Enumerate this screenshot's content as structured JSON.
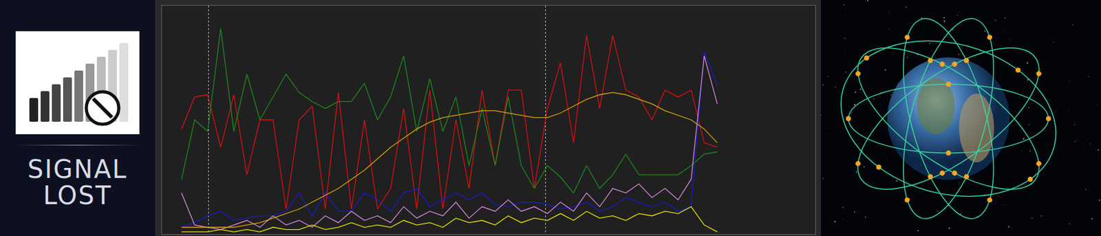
{
  "panel_text": [
    "SIGNAL",
    "LOST"
  ],
  "chart_data": {
    "type": "line",
    "x": [
      3,
      5,
      7,
      9,
      11,
      13,
      15,
      17,
      19,
      21,
      23,
      25,
      27,
      29,
      31,
      33,
      35,
      37,
      39,
      41,
      43,
      45,
      47,
      49,
      51,
      53,
      55,
      57,
      59,
      61,
      63,
      65,
      67,
      69,
      71,
      73,
      75,
      77,
      79,
      81,
      83,
      85
    ],
    "series": [
      {
        "color": "#e01010",
        "values": [
          46,
          60,
          61,
          38,
          61,
          26,
          50,
          50,
          11,
          50,
          56,
          11,
          62,
          11,
          50,
          11,
          20,
          55,
          11,
          63,
          11,
          50,
          20,
          63,
          30,
          63,
          63,
          20,
          55,
          75,
          40,
          87,
          55,
          87,
          63,
          60,
          50,
          63,
          60,
          63,
          40,
          38
        ]
      },
      {
        "color": "#1c8c1c",
        "values": [
          24,
          50,
          45,
          90,
          45,
          70,
          50,
          60,
          70,
          62,
          58,
          55,
          58,
          58,
          66,
          50,
          60,
          78,
          45,
          68,
          45,
          60,
          30,
          55,
          30,
          60,
          30,
          20,
          30,
          25,
          18,
          30,
          20,
          26,
          35,
          26,
          26,
          26,
          26,
          30,
          35,
          36
        ]
      },
      {
        "color": "#1a1ad8",
        "values": [
          3,
          5,
          8,
          10,
          6,
          7,
          8,
          8,
          10,
          18,
          8,
          18,
          10,
          10,
          18,
          15,
          10,
          18,
          20,
          12,
          15,
          18,
          15,
          18,
          13,
          12,
          14,
          14,
          13,
          11,
          12,
          14,
          10,
          12,
          16,
          14,
          12,
          14,
          10,
          12,
          80,
          65
        ]
      },
      {
        "color": "#d88ae0",
        "values": [
          18,
          4,
          3,
          2,
          4,
          6,
          3,
          8,
          4,
          6,
          3,
          8,
          5,
          10,
          6,
          8,
          5,
          12,
          7,
          10,
          8,
          14,
          7,
          12,
          10,
          15,
          10,
          12,
          9,
          14,
          10,
          18,
          12,
          20,
          18,
          22,
          16,
          20,
          15,
          24,
          78,
          57
        ]
      },
      {
        "color": "#e0a800",
        "values": [
          3,
          3,
          3,
          3,
          3,
          4,
          5,
          7,
          9,
          11,
          14,
          17,
          20,
          24,
          28,
          33,
          38,
          42,
          46,
          49,
          51,
          52,
          53,
          54,
          54,
          53,
          52,
          51,
          51,
          53,
          56,
          59,
          61,
          62,
          61,
          59,
          57,
          54,
          52,
          50,
          46,
          40
        ]
      },
      {
        "color": "#e8e800",
        "values": [
          1,
          1,
          1,
          2,
          1,
          2,
          1,
          3,
          2,
          2,
          4,
          2,
          3,
          5,
          3,
          4,
          3,
          6,
          4,
          5,
          3,
          7,
          5,
          6,
          4,
          8,
          5,
          7,
          6,
          9,
          6,
          10,
          7,
          8,
          6,
          9,
          8,
          10,
          9,
          12,
          4,
          1
        ]
      }
    ],
    "xlim": [
      0,
      100
    ],
    "ylim": [
      0,
      100
    ],
    "xticks": [
      7.1,
      58.7
    ],
    "yticks": [],
    "grid": true,
    "tick_labels": false
  }
}
